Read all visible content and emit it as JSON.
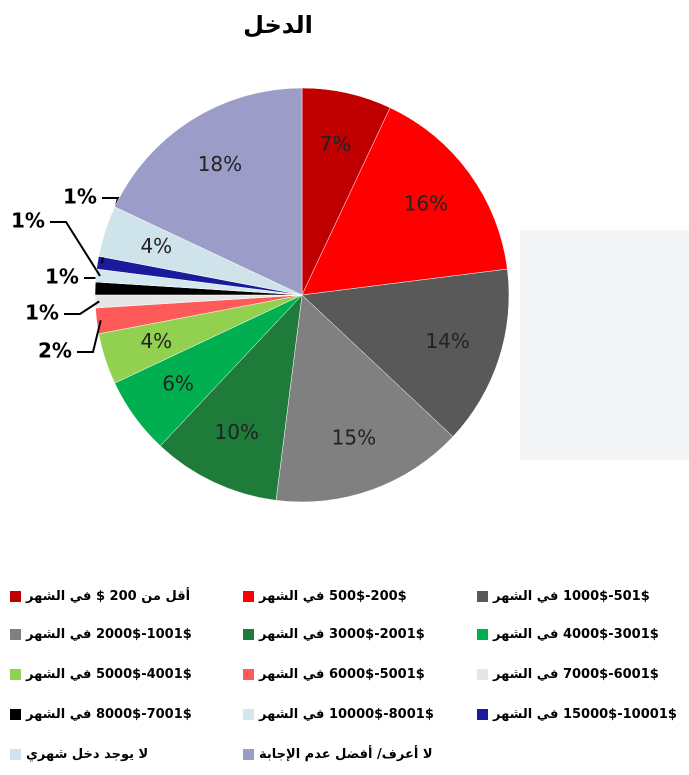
{
  "chart_data": {
    "type": "pie",
    "title": "الدخل",
    "categories": [
      "أقل من 200 $ في الشهر",
      "200$-500$ في الشهر",
      "501$-1000$ في الشهر",
      "1001$-2000$ في الشهر",
      "2001$-3000$ في الشهر",
      "3001$-4000$ في الشهر",
      "4001$-5000$ في الشهر",
      "5001$-6000$ في الشهر",
      "6001$-7000$ في الشهر",
      "7001$-8000$ في الشهر",
      "8001$-10000$ في الشهر",
      "10001$-15000$ في الشهر",
      "لا يوجد دخل شهري",
      "لا أعرف/ أفضل عدم الإجابة"
    ],
    "values": [
      7,
      16,
      14,
      15,
      10,
      6,
      4,
      2,
      1,
      1,
      1,
      1,
      4,
      18
    ],
    "value_labels": [
      "7%",
      "16%",
      "14%",
      "15%",
      "10%",
      "6%",
      "4%",
      "2%",
      "1%",
      "1%",
      "1%",
      "1%",
      "4%",
      "18%"
    ],
    "colors": [
      "#c00000",
      "#ff0000",
      "#595959",
      "#808080",
      "#1e7b3a",
      "#00b050",
      "#92d050",
      "#ff5a5a",
      "#e6e6e6",
      "#000000",
      "#d3e8ee",
      "#1a1a9c",
      "#cfe4ea",
      "#9c9cc8"
    ]
  }
}
